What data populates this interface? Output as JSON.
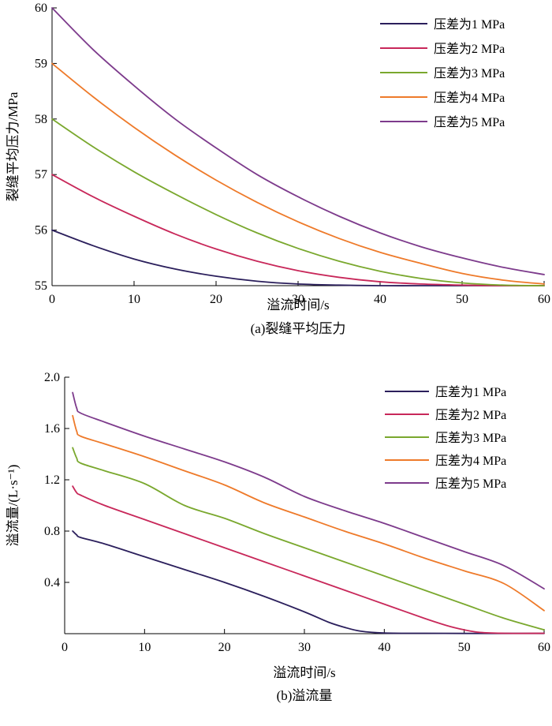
{
  "colors": {
    "s1": "#2b1f5c",
    "s2": "#c8285a",
    "s3": "#7aa82e",
    "s4": "#ee7a2a",
    "s5": "#7d3b8c"
  },
  "chart_data": [
    {
      "type": "line",
      "caption": "(a)裂缝平均压力",
      "xlabel": "溢流时间/s",
      "ylabel": "裂缝平均压力/MPa",
      "xlim": [
        0,
        60
      ],
      "ylim": [
        55,
        60
      ],
      "xticks": [
        0,
        10,
        20,
        30,
        40,
        50,
        60
      ],
      "yticks": [
        55,
        56,
        57,
        58,
        59,
        60
      ],
      "legend_position": "top-right",
      "grid": false,
      "x": [
        0,
        5,
        10,
        15,
        20,
        25,
        30,
        35,
        40,
        45,
        50,
        55,
        60
      ],
      "series": [
        {
          "name": "压差为1 MPa",
          "color_key": "s1",
          "values": [
            56.0,
            55.72,
            55.48,
            55.3,
            55.17,
            55.08,
            55.03,
            55.01,
            55.0,
            55.0,
            55.0,
            55.0,
            55.0
          ]
        },
        {
          "name": "压差为2 MPa",
          "color_key": "s2",
          "values": [
            57.0,
            56.6,
            56.25,
            55.93,
            55.66,
            55.44,
            55.27,
            55.15,
            55.07,
            55.03,
            55.01,
            55.0,
            55.0
          ]
        },
        {
          "name": "压差为3 MPa",
          "color_key": "s3",
          "values": [
            58.0,
            57.5,
            57.05,
            56.65,
            56.28,
            55.95,
            55.67,
            55.44,
            55.26,
            55.13,
            55.05,
            55.01,
            55.0
          ]
        },
        {
          "name": "压差为4 MPa",
          "color_key": "s4",
          "values": [
            59.0,
            58.4,
            57.85,
            57.35,
            56.9,
            56.5,
            56.15,
            55.85,
            55.6,
            55.4,
            55.22,
            55.1,
            55.03
          ]
        },
        {
          "name": "压差为5 MPa",
          "color_key": "s5",
          "values": [
            60.0,
            59.25,
            58.6,
            58.0,
            57.48,
            57.0,
            56.6,
            56.25,
            55.95,
            55.7,
            55.5,
            55.33,
            55.2
          ]
        }
      ]
    },
    {
      "type": "line",
      "caption": "(b)溢流量",
      "xlabel": "溢流时间/s",
      "ylabel": "溢流量/(L·s⁻¹)",
      "xlim": [
        0,
        60
      ],
      "ylim": [
        0,
        2.0
      ],
      "xticks": [
        0,
        10,
        20,
        30,
        40,
        50,
        60
      ],
      "yticks": [
        0.4,
        0.8,
        1.2,
        1.6,
        2.0
      ],
      "ytick_labels": [
        "0.4",
        "0.8",
        "1.2",
        "1.6",
        "2.0"
      ],
      "legend_position": "top-right",
      "grid": false,
      "series": [
        {
          "name": "压差为1 MPa",
          "color_key": "s1",
          "x": [
            1,
            1.5,
            2,
            5,
            10,
            15,
            20,
            25,
            30,
            33,
            35,
            37,
            40,
            45,
            50,
            55,
            60
          ],
          "values": [
            0.8,
            0.77,
            0.75,
            0.7,
            0.6,
            0.5,
            0.4,
            0.29,
            0.17,
            0.09,
            0.05,
            0.02,
            0.005,
            0.003,
            0.002,
            0.002,
            0.002
          ]
        },
        {
          "name": "压差为2 MPa",
          "color_key": "s2",
          "x": [
            1,
            1.5,
            2,
            5,
            10,
            15,
            20,
            25,
            30,
            35,
            40,
            45,
            48,
            50,
            52,
            55,
            60
          ],
          "values": [
            1.15,
            1.1,
            1.08,
            1.0,
            0.89,
            0.78,
            0.67,
            0.56,
            0.45,
            0.34,
            0.23,
            0.12,
            0.06,
            0.03,
            0.01,
            0.003,
            0.003
          ]
        },
        {
          "name": "压差为3 MPa",
          "color_key": "s3",
          "x": [
            1,
            1.5,
            2,
            5,
            10,
            15,
            20,
            25,
            30,
            35,
            40,
            45,
            50,
            55,
            60
          ],
          "values": [
            1.45,
            1.37,
            1.33,
            1.27,
            1.17,
            1.0,
            0.9,
            0.78,
            0.67,
            0.56,
            0.45,
            0.34,
            0.23,
            0.12,
            0.03
          ]
        },
        {
          "name": "压差为4 MPa",
          "color_key": "s4",
          "x": [
            1,
            1.5,
            2,
            5,
            10,
            15,
            20,
            25,
            30,
            35,
            40,
            45,
            50,
            55,
            60
          ],
          "values": [
            1.7,
            1.58,
            1.54,
            1.48,
            1.38,
            1.27,
            1.16,
            1.02,
            0.91,
            0.8,
            0.7,
            0.59,
            0.49,
            0.39,
            0.18
          ]
        },
        {
          "name": "压差为5 MPa",
          "color_key": "s5",
          "x": [
            1,
            1.5,
            2,
            5,
            10,
            15,
            20,
            25,
            30,
            35,
            40,
            45,
            50,
            55,
            60
          ],
          "values": [
            1.88,
            1.76,
            1.72,
            1.65,
            1.54,
            1.44,
            1.34,
            1.22,
            1.07,
            0.96,
            0.86,
            0.75,
            0.64,
            0.53,
            0.35
          ]
        }
      ]
    }
  ]
}
